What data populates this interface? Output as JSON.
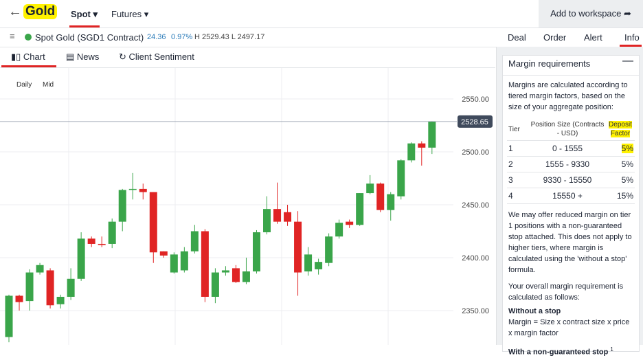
{
  "header": {
    "instrument": "Gold",
    "tabs": [
      "Spot",
      "Futures"
    ],
    "workspace_button": "Add to workspace"
  },
  "market": {
    "name": "Spot Gold (SGD1 Contract)",
    "change": "24.36",
    "change_pct": "0.97%",
    "high_low": "H 2529.43 L 2497.17",
    "actions": [
      "Deal",
      "Order",
      "Alert",
      "Info"
    ]
  },
  "views": [
    "Chart",
    "News",
    "Client Sentiment"
  ],
  "chart_options": [
    "Daily",
    "Mid"
  ],
  "chart_data": {
    "type": "candlestick",
    "ylim": [
      2318.8,
      2578.6
    ],
    "yticks": [
      {
        "value": 2550,
        "label": "2550.00"
      },
      {
        "value": 2500,
        "label": "2500.00"
      },
      {
        "value": 2450,
        "label": "2450.00"
      },
      {
        "value": 2400,
        "label": "2400.00"
      },
      {
        "value": 2350,
        "label": "2350.00"
      }
    ],
    "up_color": "#3aa54a",
    "down_color": "#e02424",
    "last_price": 2528.65,
    "open": [
      2325,
      2364,
      2359,
      2386,
      2388,
      2356,
      2363,
      2380,
      2418,
      2413,
      2413,
      2434,
      2464,
      2465,
      2462,
      2406,
      2386,
      2388,
      2406,
      2425,
      2363,
      2386,
      2390,
      2377,
      2387,
      2424,
      2446,
      2443,
      2434,
      2387,
      2389,
      2395,
      2420,
      2434,
      2431,
      2461,
      2470,
      2445,
      2458,
      2492,
      2508,
      2504
    ],
    "high": [
      2365,
      2365,
      2389,
      2395,
      2390,
      2365,
      2390,
      2424,
      2420,
      2420,
      2437,
      2465,
      2480,
      2470,
      2462,
      2406,
      2405,
      2410,
      2431,
      2427,
      2390,
      2392,
      2393,
      2400,
      2426,
      2458,
      2471,
      2450,
      2444,
      2410,
      2399,
      2423,
      2436,
      2436,
      2461,
      2478,
      2471,
      2462,
      2493,
      2509,
      2510,
      2529
    ],
    "low": [
      2320,
      2350,
      2350,
      2384,
      2352,
      2352,
      2360,
      2378,
      2410,
      2410,
      2409,
      2425,
      2455,
      2455,
      2395,
      2400,
      2385,
      2386,
      2404,
      2358,
      2357,
      2383,
      2376,
      2375,
      2385,
      2422,
      2432,
      2430,
      2364,
      2383,
      2384,
      2392,
      2418,
      2428,
      2430,
      2460,
      2443,
      2435,
      2455,
      2490,
      2487,
      2498
    ],
    "close": [
      2364,
      2358,
      2386,
      2393,
      2355,
      2363,
      2380,
      2418,
      2413,
      2412,
      2434,
      2464,
      2465,
      2462,
      2405,
      2402,
      2403,
      2406,
      2425,
      2363,
      2386,
      2388,
      2377,
      2387,
      2424,
      2446,
      2434,
      2434,
      2386,
      2403,
      2396,
      2420,
      2433,
      2431,
      2461,
      2470,
      2445,
      2460,
      2492,
      2508,
      2504,
      2528.65
    ]
  },
  "panel": {
    "title": "Margin requirements",
    "intro": "Margins are calculated according to tiered margin factors, based on the size of your aggregate position:",
    "table": {
      "header": [
        "Tier",
        "Position Size (Contracts - USD)",
        "Deposit Factor"
      ],
      "rows": [
        [
          "1",
          "0 - 1555",
          "5%"
        ],
        [
          "2",
          "1555 - 9330",
          "5%"
        ],
        [
          "3",
          "9330 - 15550",
          "5%"
        ],
        [
          "4",
          "15550 +",
          "15%"
        ]
      ]
    },
    "note": "We may offer reduced margin on tier 1 positions with a non-guaranteed stop attached. This does not apply to higher tiers, where margin is calculated using the 'without a stop' formula.",
    "overall": "Your overall margin requirement is calculated as follows:",
    "without_stop_heading": "Without a stop",
    "without_stop_formula": "Margin = Size x contract size x price x margin factor",
    "with_stop_heading": "With a non-guaranteed stop",
    "footnote_mark": "1"
  }
}
